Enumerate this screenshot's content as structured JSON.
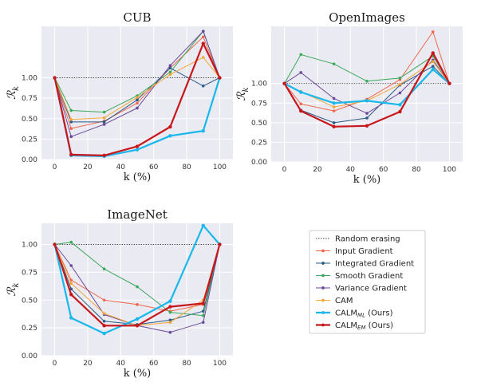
{
  "chart_data": [
    {
      "type": "line",
      "title": "CUB",
      "xlabel": "k (%)",
      "ylabel": "R_k",
      "xlim": [
        -8,
        108
      ],
      "ylim": [
        0,
        1.63
      ],
      "xticks": [
        0,
        20,
        40,
        60,
        80,
        100
      ],
      "yticks": [
        0.0,
        0.25,
        0.5,
        0.75,
        1.0
      ],
      "grid": true,
      "series": [
        {
          "key": "random",
          "x": [
            0,
            100
          ],
          "values": [
            1.0,
            1.0
          ]
        },
        {
          "key": "input",
          "x": [
            0,
            10,
            30,
            50,
            70,
            90,
            100
          ],
          "values": [
            1.0,
            0.38,
            0.47,
            0.69,
            1.12,
            1.5,
            1.0
          ]
        },
        {
          "key": "integrated",
          "x": [
            0,
            10,
            30,
            50,
            70,
            90,
            100
          ],
          "values": [
            1.0,
            0.46,
            0.46,
            0.73,
            1.12,
            0.9,
            1.0
          ]
        },
        {
          "key": "smooth",
          "x": [
            0,
            10,
            30,
            50,
            70,
            90,
            100
          ],
          "values": [
            1.0,
            0.6,
            0.58,
            0.78,
            1.07,
            1.57,
            1.0
          ]
        },
        {
          "key": "variance",
          "x": [
            0,
            10,
            30,
            50,
            70,
            90,
            100
          ],
          "values": [
            1.0,
            0.28,
            0.43,
            0.63,
            1.15,
            1.57,
            1.0
          ]
        },
        {
          "key": "cam",
          "x": [
            0,
            10,
            30,
            50,
            70,
            90,
            100
          ],
          "values": [
            1.0,
            0.49,
            0.51,
            0.76,
            1.04,
            1.25,
            1.0
          ]
        },
        {
          "key": "calm_ml",
          "x": [
            0,
            10,
            30,
            50,
            70,
            90,
            100
          ],
          "values": [
            1.0,
            0.05,
            0.04,
            0.12,
            0.29,
            0.35,
            1.0
          ]
        },
        {
          "key": "calm_em",
          "x": [
            0,
            10,
            30,
            50,
            70,
            90,
            100
          ],
          "values": [
            1.0,
            0.06,
            0.05,
            0.16,
            0.4,
            1.42,
            1.0
          ]
        }
      ]
    },
    {
      "type": "line",
      "title": "OpenImages",
      "xlabel": "k (%)",
      "ylabel": "R_k",
      "xlim": [
        -8,
        108
      ],
      "ylim": [
        0,
        1.73
      ],
      "xticks": [
        0,
        20,
        40,
        60,
        80,
        100
      ],
      "yticks": [
        0.0,
        0.25,
        0.5,
        0.75,
        1.0
      ],
      "grid": true,
      "series": [
        {
          "key": "random",
          "x": [
            0,
            100
          ],
          "values": [
            1.0,
            1.0
          ]
        },
        {
          "key": "input",
          "x": [
            0,
            10,
            30,
            50,
            70,
            90,
            100
          ],
          "values": [
            1.0,
            0.74,
            0.65,
            0.8,
            1.05,
            1.66,
            1.0
          ]
        },
        {
          "key": "integrated",
          "x": [
            0,
            10,
            30,
            50,
            70,
            90,
            100
          ],
          "values": [
            1.0,
            0.66,
            0.5,
            0.56,
            0.98,
            1.22,
            1.0
          ]
        },
        {
          "key": "smooth",
          "x": [
            0,
            10,
            30,
            50,
            70,
            90,
            100
          ],
          "values": [
            1.0,
            1.37,
            1.25,
            1.03,
            1.07,
            1.35,
            1.0
          ]
        },
        {
          "key": "variance",
          "x": [
            0,
            10,
            30,
            50,
            70,
            90,
            100
          ],
          "values": [
            1.0,
            1.14,
            0.81,
            0.62,
            0.88,
            1.3,
            1.0
          ]
        },
        {
          "key": "cam",
          "x": [
            0,
            10,
            30,
            50,
            70,
            90,
            100
          ],
          "values": [
            1.0,
            0.9,
            0.7,
            0.78,
            0.99,
            1.28,
            1.0
          ]
        },
        {
          "key": "calm_ml",
          "x": [
            0,
            10,
            30,
            50,
            70,
            90,
            100
          ],
          "values": [
            1.0,
            0.89,
            0.75,
            0.78,
            0.73,
            1.18,
            1.0
          ]
        },
        {
          "key": "calm_em",
          "x": [
            0,
            10,
            30,
            50,
            70,
            90,
            100
          ],
          "values": [
            1.0,
            0.65,
            0.45,
            0.46,
            0.64,
            1.39,
            1.0
          ]
        }
      ]
    },
    {
      "type": "line",
      "title": "ImageNet",
      "xlabel": "k (%)",
      "ylabel": "R_k",
      "xlim": [
        -8,
        108
      ],
      "ylim": [
        0,
        1.19
      ],
      "xticks": [
        0,
        20,
        40,
        60,
        80,
        100
      ],
      "yticks": [
        0.0,
        0.25,
        0.5,
        0.75,
        1.0
      ],
      "grid": true,
      "series": [
        {
          "key": "random",
          "x": [
            0,
            100
          ],
          "values": [
            1.0,
            1.0
          ]
        },
        {
          "key": "input",
          "x": [
            0,
            10,
            30,
            50,
            70,
            90,
            100
          ],
          "values": [
            1.0,
            0.68,
            0.5,
            0.46,
            0.4,
            0.46,
            1.0
          ]
        },
        {
          "key": "integrated",
          "x": [
            0,
            10,
            30,
            50,
            70,
            90,
            100
          ],
          "values": [
            1.0,
            0.6,
            0.31,
            0.28,
            0.32,
            0.4,
            1.0
          ]
        },
        {
          "key": "smooth",
          "x": [
            0,
            10,
            30,
            50,
            70,
            90,
            100
          ],
          "values": [
            1.0,
            1.02,
            0.78,
            0.62,
            0.39,
            0.36,
            1.0
          ]
        },
        {
          "key": "variance",
          "x": [
            0,
            10,
            30,
            50,
            70,
            90,
            100
          ],
          "values": [
            1.0,
            0.81,
            0.37,
            0.27,
            0.21,
            0.3,
            1.0
          ]
        },
        {
          "key": "cam",
          "x": [
            0,
            10,
            30,
            50,
            70,
            90,
            100
          ],
          "values": [
            1.0,
            0.65,
            0.38,
            0.27,
            0.3,
            0.5,
            1.0
          ]
        },
        {
          "key": "calm_ml",
          "x": [
            0,
            10,
            30,
            50,
            70,
            90,
            100
          ],
          "values": [
            1.0,
            0.34,
            0.2,
            0.33,
            0.49,
            1.17,
            1.0
          ]
        },
        {
          "key": "calm_em",
          "x": [
            0,
            10,
            30,
            50,
            70,
            90,
            100
          ],
          "values": [
            1.0,
            0.55,
            0.27,
            0.27,
            0.44,
            0.47,
            1.0
          ]
        }
      ]
    }
  ],
  "legend": {
    "placement": "right of ImageNet panel",
    "entries": [
      {
        "key": "random",
        "label": "Random erasing",
        "sub": "",
        "suffix": ""
      },
      {
        "key": "input",
        "label": "Input Gradient",
        "sub": "",
        "suffix": ""
      },
      {
        "key": "integrated",
        "label": "Integrated Gradient",
        "sub": "",
        "suffix": ""
      },
      {
        "key": "smooth",
        "label": "Smooth Gradient",
        "sub": "",
        "suffix": ""
      },
      {
        "key": "variance",
        "label": "Variance Gradient",
        "sub": "",
        "suffix": ""
      },
      {
        "key": "cam",
        "label": "CAM",
        "sub": "",
        "suffix": ""
      },
      {
        "key": "calm_ml",
        "label": "CALM",
        "sub": "ML",
        "suffix": " (Ours)"
      },
      {
        "key": "calm_em",
        "label": "CALM",
        "sub": "EM",
        "suffix": " (Ours)"
      }
    ]
  },
  "series_styles": {
    "random": {
      "color": "#444444",
      "dashed": true,
      "marker": false
    },
    "input": {
      "color": "#f0694e",
      "dashed": false,
      "marker": true
    },
    "integrated": {
      "color": "#2a5a86",
      "dashed": false,
      "marker": true
    },
    "smooth": {
      "color": "#3da85a",
      "dashed": false,
      "marker": true
    },
    "variance": {
      "color": "#6a4a98",
      "dashed": false,
      "marker": true
    },
    "cam": {
      "color": "#f5a637",
      "dashed": false,
      "marker": true
    },
    "calm_ml": {
      "color": "#19b8ec",
      "dashed": false,
      "marker": true
    },
    "calm_em": {
      "color": "#c8171b",
      "dashed": false,
      "marker": true
    }
  },
  "plot_background": "#eaeaf2"
}
